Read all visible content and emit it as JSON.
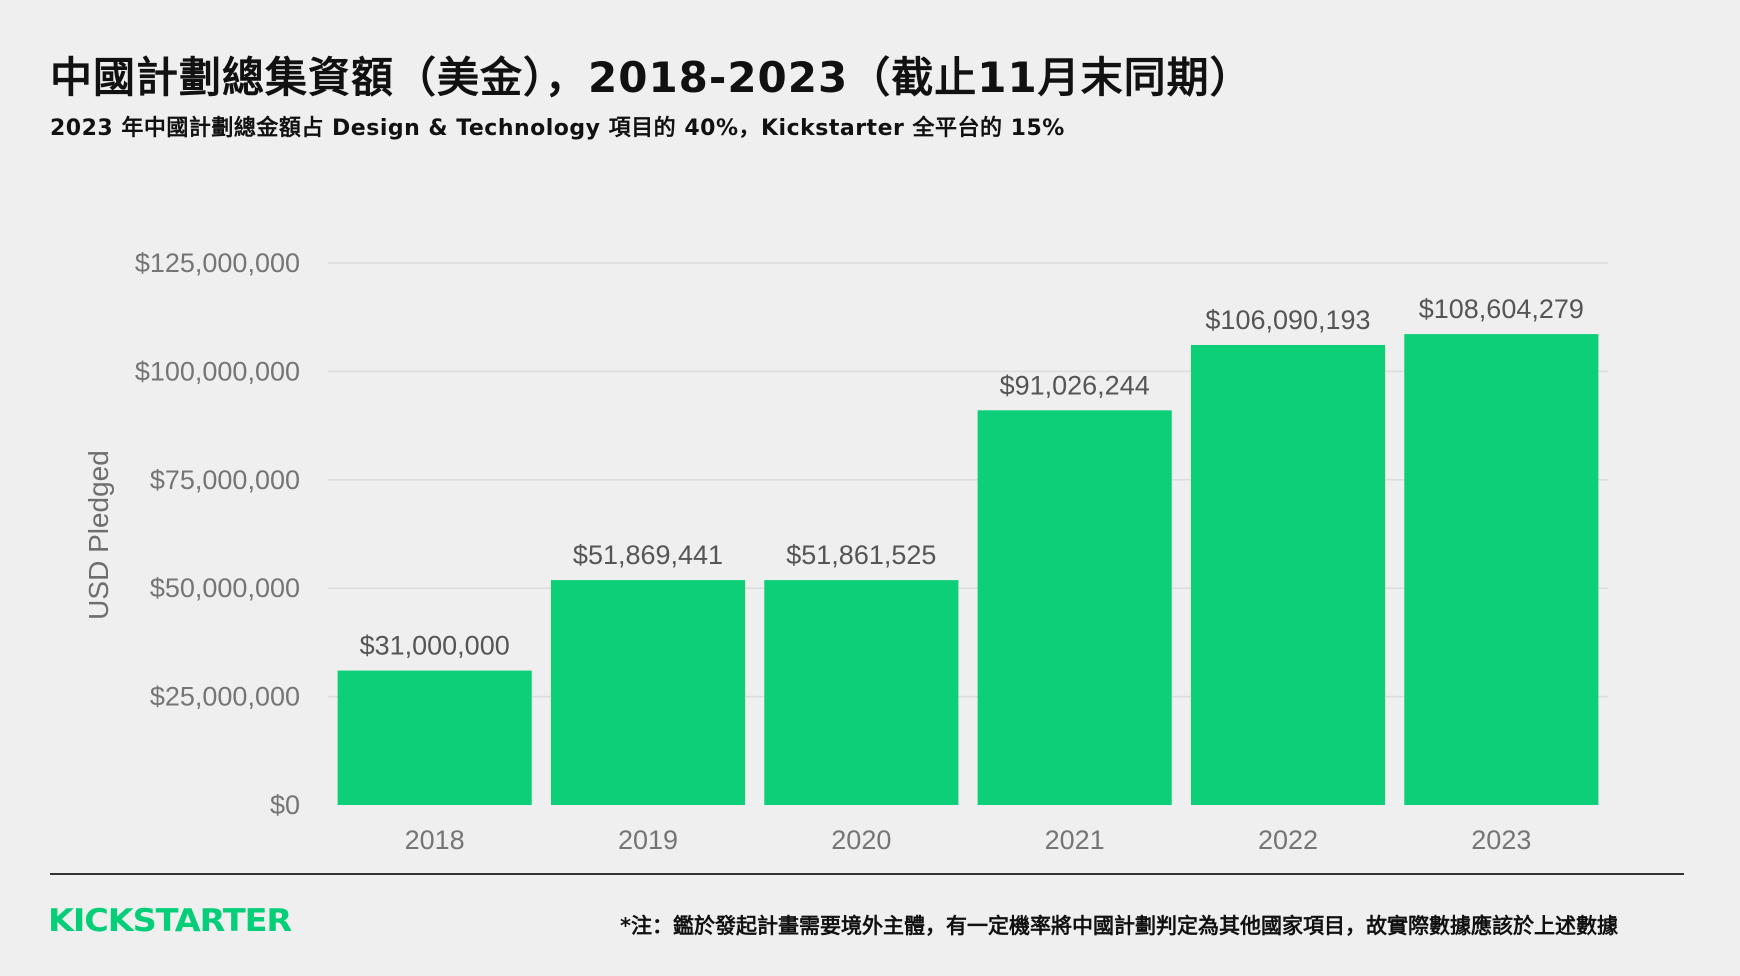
{
  "header": {
    "title": "中國計劃總集資額（美金），2018-2023（截止11月末同期）",
    "subtitle": "2023 年中國計劃總金額占 Design & Technology 項目的 40%，Kickstarter 全平台的 15%"
  },
  "footer": {
    "logo_text": "KICKSTARTER",
    "note": "*注：鑑於發起計畫需要境外主體，有一定機率將中國計劃判定為其他國家項目，故實際數據應該於上述數據"
  },
  "colors": {
    "bar": "#0ccf77",
    "brand": "#05ce78",
    "gridline": "#dcdcdc"
  },
  "chart_data": {
    "type": "bar",
    "categories": [
      "2018",
      "2019",
      "2020",
      "2021",
      "2022",
      "2023"
    ],
    "values": [
      31000000,
      51869441,
      51861525,
      91026244,
      106090193,
      108604279
    ],
    "value_labels": [
      "$31,000,000",
      "$51,869,441",
      "$51,861,525",
      "$91,026,244",
      "$106,090,193",
      "$108,604,279"
    ],
    "ylabel": "USD Pledged",
    "xlabel": "",
    "ylim": [
      0,
      125000000
    ],
    "yticks": [
      0,
      25000000,
      50000000,
      75000000,
      100000000,
      125000000
    ],
    "ytick_labels": [
      "$0",
      "$25,000,000",
      "$50,000,000",
      "$75,000,000",
      "$100,000,000",
      "$125,000,000"
    ],
    "grid": true,
    "legend": "none"
  }
}
